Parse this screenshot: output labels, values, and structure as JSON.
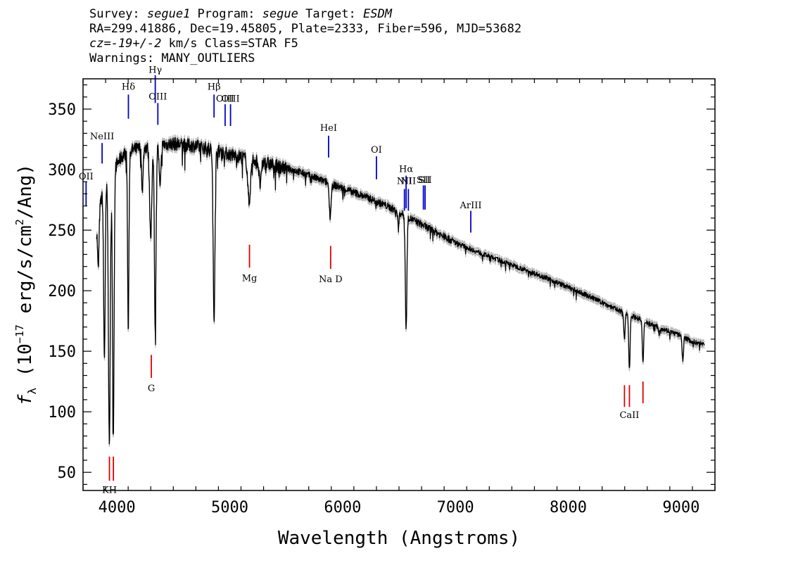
{
  "header": {
    "line1": {
      "survey_label": "Survey: ",
      "survey": "segue1",
      "program_label": " Program: ",
      "program": "segue",
      "target_label": " Target: ",
      "target": "ESDM"
    },
    "line2": "RA=299.41886, Dec=19.45805, Plate=2333, Fiber=596, MJD=53682",
    "line3": {
      "cz": "cz=-19+/-2",
      "rest": " km/s Class=STAR F5"
    },
    "line4": "Warnings: MANY_OUTLIERS"
  },
  "chart_data": {
    "type": "line",
    "xlabel": "Wavelength (Angstroms)",
    "ylabel": "f_λ (10^-17 erg/s/cm^2/Ang)",
    "ylabel_parts": {
      "f": "f",
      "sub": "λ",
      "a": " (10",
      "exp1": "−17",
      "b": " erg/s/cm",
      "exp2": "2",
      "c": "/Ang)"
    },
    "xlim": [
      3700,
      9300
    ],
    "ylim": [
      35,
      375
    ],
    "xticks": [
      4000,
      5000,
      6000,
      7000,
      8000,
      9000
    ],
    "yticks": [
      50,
      100,
      150,
      200,
      250,
      300,
      350
    ],
    "xtick_labels": [
      "4000",
      "5000",
      "6000",
      "7000",
      "8000",
      "9000"
    ],
    "ytick_labels": [
      "50",
      "100",
      "150",
      "200",
      "250",
      "300",
      "350"
    ],
    "series_color": "#000000",
    "error_color": "#b8b8b8",
    "emission_color": "#0000cc",
    "absorption_color": "#dd0000",
    "continuum": [
      [
        3820,
        250
      ],
      [
        3850,
        270
      ],
      [
        3880,
        285
      ],
      [
        3920,
        290
      ],
      [
        3960,
        300
      ],
      [
        4000,
        305
      ],
      [
        4050,
        312
      ],
      [
        4100,
        316
      ],
      [
        4200,
        318
      ],
      [
        4300,
        320
      ],
      [
        4400,
        321
      ],
      [
        4500,
        322
      ],
      [
        4600,
        321
      ],
      [
        4700,
        320
      ],
      [
        4800,
        318
      ],
      [
        4900,
        316
      ],
      [
        5000,
        313
      ],
      [
        5200,
        309
      ],
      [
        5400,
        304
      ],
      [
        5600,
        299
      ],
      [
        5800,
        292
      ],
      [
        6000,
        285
      ],
      [
        6200,
        278
      ],
      [
        6400,
        270
      ],
      [
        6600,
        260
      ],
      [
        6800,
        250
      ],
      [
        7000,
        240
      ],
      [
        7200,
        232
      ],
      [
        7400,
        225
      ],
      [
        7600,
        218
      ],
      [
        7800,
        211
      ],
      [
        8000,
        203
      ],
      [
        8200,
        195
      ],
      [
        8400,
        186
      ],
      [
        8600,
        178
      ],
      [
        8800,
        170
      ],
      [
        9000,
        163
      ],
      [
        9100,
        158
      ],
      [
        9200,
        156
      ]
    ],
    "absorption_features": [
      [
        3835,
        218,
        6
      ],
      [
        3889,
        145,
        7
      ],
      [
        3933,
        72,
        8
      ],
      [
        3968,
        80,
        7
      ],
      [
        4101,
        168,
        6
      ],
      [
        4226,
        285,
        7
      ],
      [
        4300,
        247,
        10
      ],
      [
        4340,
        166,
        7
      ],
      [
        4383,
        285,
        8
      ],
      [
        4861,
        178,
        8
      ],
      [
        5172,
        274,
        12
      ],
      [
        5270,
        288,
        10
      ],
      [
        5890,
        262,
        8
      ],
      [
        6563,
        170,
        7
      ],
      [
        6495,
        254,
        6
      ],
      [
        8498,
        160,
        6
      ],
      [
        8542,
        135,
        6
      ],
      [
        8662,
        140,
        6
      ],
      [
        9015,
        143,
        6
      ],
      [
        8805,
        165,
        5
      ]
    ],
    "emission_lines": [
      {
        "label": "OII",
        "wave": 3727,
        "y1": 270,
        "y2": 290,
        "label_y": 292
      },
      {
        "label": "NeIII",
        "wave": 3869,
        "y1": 305,
        "y2": 322,
        "label_y": 325
      },
      {
        "label": "Hδ",
        "wave": 4102,
        "y1": 342,
        "y2": 362,
        "label_y": 366
      },
      {
        "label": "Hγ",
        "wave": 4340,
        "y1": 355,
        "y2": 378,
        "label_y": 380
      },
      {
        "label": "OIII",
        "wave": 4363,
        "y1": 337,
        "y2": 355,
        "label_y": 358
      },
      {
        "label": "Hβ",
        "wave": 4861,
        "y1": 343,
        "y2": 362,
        "label_y": 366
      },
      {
        "label": "OIII",
        "wave": 4959,
        "y1": 336,
        "y2": 354,
        "label_y": 356
      },
      {
        "label": "OIII",
        "wave": 5007,
        "y1": 336,
        "y2": 354,
        "label_y": 356
      },
      {
        "label": "HeI",
        "wave": 5876,
        "y1": 310,
        "y2": 328,
        "label_y": 332
      },
      {
        "label": "OI",
        "wave": 6300,
        "y1": 292,
        "y2": 311,
        "label_y": 314
      },
      {
        "label": "NII",
        "wave": 6548,
        "y1": 266,
        "y2": 284,
        "label_y": 288
      },
      {
        "label": "Hα",
        "wave": 6563,
        "y1": 268,
        "y2": 295,
        "label_y": 298
      },
      {
        "label": "NII",
        "wave": 6583,
        "y1": 266,
        "y2": 284,
        "label_y": 288
      },
      {
        "label": "SII",
        "wave": 6716,
        "y1": 267,
        "y2": 287,
        "label_y": 289
      },
      {
        "label": "SII",
        "wave": 6731,
        "y1": 267,
        "y2": 287,
        "label_y": 289
      },
      {
        "label": "ArIII",
        "wave": 7136,
        "y1": 248,
        "y2": 266,
        "label_y": 268
      }
    ],
    "absorption_lines": [
      {
        "label": "KH",
        "wave": 3934,
        "y1": 43,
        "y2": 63,
        "label_y": 33
      },
      {
        "label": "",
        "wave": 3969,
        "y1": 43,
        "y2": 63,
        "label_y": 33
      },
      {
        "label": "G",
        "wave": 4305,
        "y1": 128,
        "y2": 147,
        "label_y": 117
      },
      {
        "label": "Mg",
        "wave": 5175,
        "y1": 219,
        "y2": 238,
        "label_y": 208
      },
      {
        "label": "Na D",
        "wave": 5894,
        "y1": 218,
        "y2": 237,
        "label_y": 207
      },
      {
        "label": "",
        "wave": 8498,
        "y1": 104,
        "y2": 122,
        "label_y": 95
      },
      {
        "label": "CaII",
        "wave": 8542,
        "y1": 104,
        "y2": 122,
        "label_y": 95
      },
      {
        "label": "",
        "wave": 8662,
        "y1": 107,
        "y2": 125,
        "label_y": 95
      }
    ]
  }
}
